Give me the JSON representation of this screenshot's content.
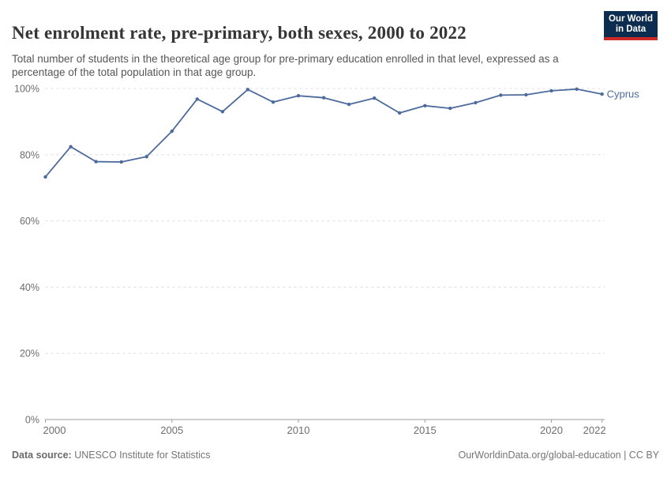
{
  "header": {
    "title": "Net enrolment rate, pre-primary, both sexes, 2000 to 2022",
    "subtitle": "Total number of students in the theoretical age group for pre-primary education enrolled in that level, expressed as a percentage of the total population in that age group.",
    "logo": {
      "line1": "Our World",
      "line2": "in Data",
      "bg_color": "#0c2d4f",
      "stripe_color": "#cb2828"
    }
  },
  "footer": {
    "datasource_label": "Data source:",
    "datasource_value": " UNESCO Institute for Statistics",
    "attribution": "OurWorldinData.org/global-education | CC BY"
  },
  "chart_data": {
    "type": "line",
    "title": "Net enrolment rate, pre-primary, both sexes, 2000 to 2022",
    "xlabel": "",
    "ylabel": "",
    "xlim": [
      2000,
      2022
    ],
    "ylim": [
      0,
      100
    ],
    "grid": "horizontal-dashed",
    "legend_position": "line-end",
    "x_ticks": [
      2000,
      2005,
      2010,
      2015,
      2020,
      2022
    ],
    "y_ticks": [
      0,
      20,
      40,
      60,
      80,
      100
    ],
    "y_tick_suffix": "%",
    "x": [
      2000,
      2001,
      2002,
      2003,
      2004,
      2005,
      2006,
      2007,
      2008,
      2009,
      2010,
      2011,
      2012,
      2013,
      2014,
      2015,
      2016,
      2017,
      2018,
      2019,
      2020,
      2021,
      2022
    ],
    "series": [
      {
        "name": "Cyprus",
        "color": "#4c6a9c",
        "values": [
          73.3,
          82.4,
          77.9,
          77.8,
          79.4,
          87.1,
          96.8,
          93.0,
          99.7,
          95.9,
          97.8,
          97.2,
          95.2,
          97.1,
          92.6,
          94.8,
          94.0,
          95.7,
          98.0,
          98.1,
          99.3,
          99.8,
          98.3
        ]
      }
    ],
    "style": {
      "grid_color": "#dcdcdc",
      "axis_color": "#9e9e9e",
      "tick_label_color": "#6d6d6d"
    }
  }
}
